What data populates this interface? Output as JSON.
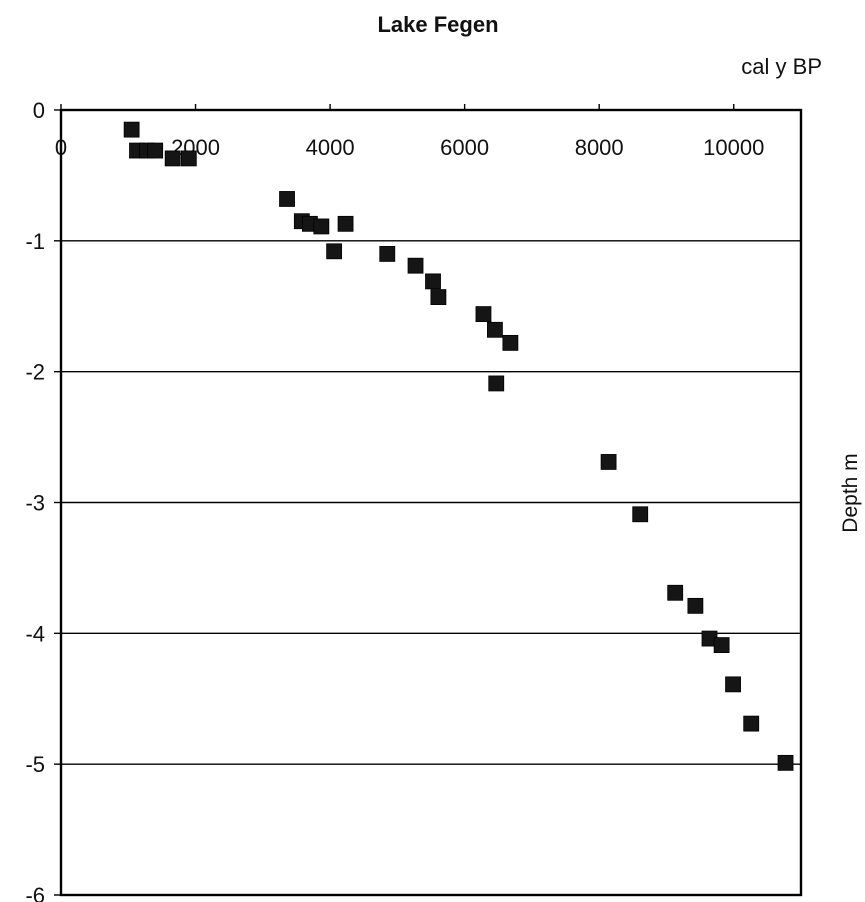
{
  "chart_data": {
    "type": "scatter",
    "title": "Lake Fegen",
    "xlabel": "cal y BP",
    "ylabel": "Depth m",
    "xlim": [
      0,
      11000
    ],
    "ylim": [
      -6,
      0
    ],
    "x_ticks": [
      "0",
      "2000",
      "4000",
      "6000",
      "8000",
      "10000"
    ],
    "y_ticks": [
      "0",
      "-1",
      "-2",
      "-3",
      "-4",
      "-5",
      "-6"
    ],
    "x_axis_position": "top",
    "grid": "horizontal",
    "marker": "filled-square",
    "marker_color": "#151515",
    "points": [
      {
        "x": 1050,
        "y": -0.15
      },
      {
        "x": 1130,
        "y": -0.31
      },
      {
        "x": 1280,
        "y": -0.31
      },
      {
        "x": 1400,
        "y": -0.31
      },
      {
        "x": 1660,
        "y": -0.37
      },
      {
        "x": 1900,
        "y": -0.37
      },
      {
        "x": 3360,
        "y": -0.68
      },
      {
        "x": 3580,
        "y": -0.85
      },
      {
        "x": 3700,
        "y": -0.87
      },
      {
        "x": 3870,
        "y": -0.89
      },
      {
        "x": 4230,
        "y": -0.87
      },
      {
        "x": 4060,
        "y": -1.08
      },
      {
        "x": 4850,
        "y": -1.1
      },
      {
        "x": 5270,
        "y": -1.19
      },
      {
        "x": 5530,
        "y": -1.31
      },
      {
        "x": 5610,
        "y": -1.43
      },
      {
        "x": 6280,
        "y": -1.56
      },
      {
        "x": 6450,
        "y": -1.68
      },
      {
        "x": 6680,
        "y": -1.78
      },
      {
        "x": 6470,
        "y": -2.09
      },
      {
        "x": 8140,
        "y": -2.69
      },
      {
        "x": 8610,
        "y": -3.09
      },
      {
        "x": 9130,
        "y": -3.69
      },
      {
        "x": 9430,
        "y": -3.79
      },
      {
        "x": 9640,
        "y": -4.04
      },
      {
        "x": 9820,
        "y": -4.09
      },
      {
        "x": 9990,
        "y": -4.39
      },
      {
        "x": 10260,
        "y": -4.69
      },
      {
        "x": 10770,
        "y": -4.99
      }
    ]
  }
}
